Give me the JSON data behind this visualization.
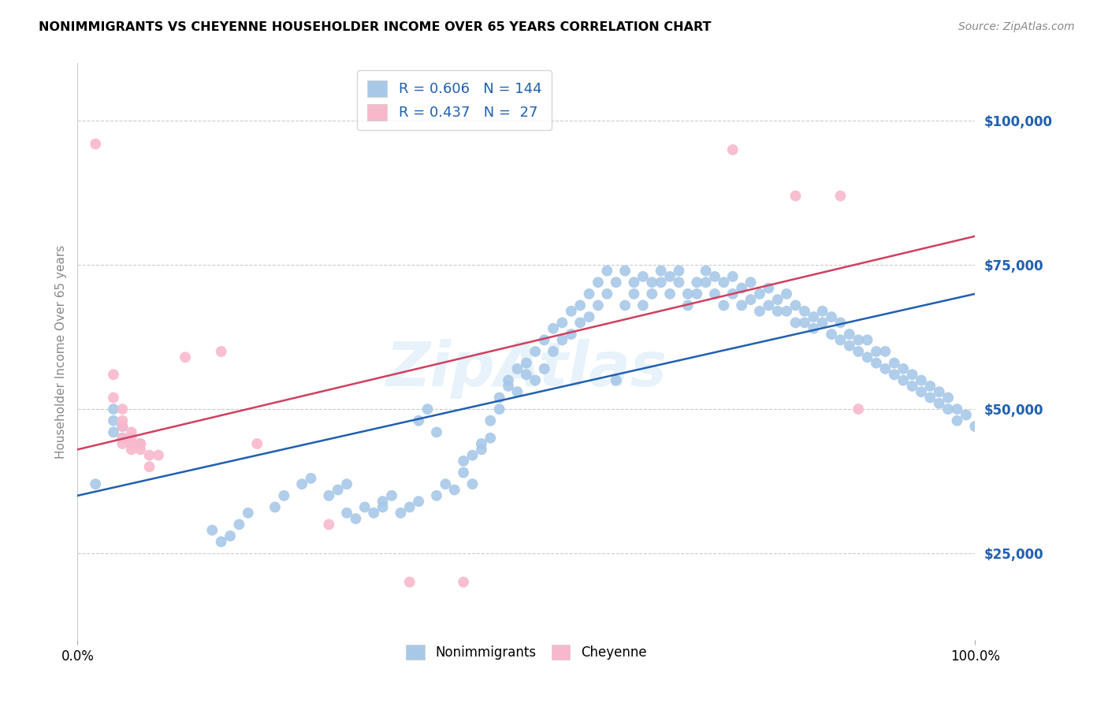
{
  "title": "NONIMMIGRANTS VS CHEYENNE HOUSEHOLDER INCOME OVER 65 YEARS CORRELATION CHART",
  "source": "Source: ZipAtlas.com",
  "ylabel": "Householder Income Over 65 years",
  "xlim": [
    0,
    1.0
  ],
  "ylim": [
    10000,
    110000
  ],
  "xtick_positions": [
    0.0,
    1.0
  ],
  "xtick_labels": [
    "0.0%",
    "100.0%"
  ],
  "ytick_values": [
    25000,
    50000,
    75000,
    100000
  ],
  "ytick_labels": [
    "$25,000",
    "$50,000",
    "$75,000",
    "$100,000"
  ],
  "blue_color": "#a8c8e8",
  "pink_color": "#f8b8cc",
  "blue_line_color": "#2060b0",
  "pink_line_color": "#d04060",
  "watermark": "ZipAtlas",
  "blue_line": {
    "x0": 0.0,
    "y0": 35000,
    "x1": 1.0,
    "y1": 70000
  },
  "pink_line": {
    "x0": 0.0,
    "y0": 43000,
    "x1": 1.0,
    "y1": 80000
  },
  "nonimmigrants": [
    [
      0.02,
      37000
    ],
    [
      0.04,
      50000
    ],
    [
      0.04,
      48000
    ],
    [
      0.04,
      46000
    ],
    [
      0.05,
      47000
    ],
    [
      0.05,
      45000
    ],
    [
      0.15,
      29000
    ],
    [
      0.16,
      27000
    ],
    [
      0.17,
      28000
    ],
    [
      0.18,
      30000
    ],
    [
      0.19,
      32000
    ],
    [
      0.22,
      33000
    ],
    [
      0.23,
      35000
    ],
    [
      0.25,
      37000
    ],
    [
      0.26,
      38000
    ],
    [
      0.28,
      35000
    ],
    [
      0.29,
      36000
    ],
    [
      0.3,
      37000
    ],
    [
      0.3,
      32000
    ],
    [
      0.31,
      31000
    ],
    [
      0.32,
      33000
    ],
    [
      0.33,
      32000
    ],
    [
      0.34,
      34000
    ],
    [
      0.34,
      33000
    ],
    [
      0.35,
      35000
    ],
    [
      0.36,
      32000
    ],
    [
      0.37,
      33000
    ],
    [
      0.38,
      34000
    ],
    [
      0.38,
      48000
    ],
    [
      0.39,
      50000
    ],
    [
      0.4,
      46000
    ],
    [
      0.4,
      35000
    ],
    [
      0.41,
      37000
    ],
    [
      0.42,
      36000
    ],
    [
      0.43,
      39000
    ],
    [
      0.43,
      41000
    ],
    [
      0.44,
      37000
    ],
    [
      0.44,
      42000
    ],
    [
      0.45,
      44000
    ],
    [
      0.45,
      43000
    ],
    [
      0.46,
      45000
    ],
    [
      0.46,
      48000
    ],
    [
      0.47,
      50000
    ],
    [
      0.47,
      52000
    ],
    [
      0.48,
      54000
    ],
    [
      0.48,
      55000
    ],
    [
      0.49,
      53000
    ],
    [
      0.49,
      57000
    ],
    [
      0.5,
      56000
    ],
    [
      0.5,
      58000
    ],
    [
      0.51,
      55000
    ],
    [
      0.51,
      60000
    ],
    [
      0.52,
      57000
    ],
    [
      0.52,
      62000
    ],
    [
      0.53,
      60000
    ],
    [
      0.53,
      64000
    ],
    [
      0.54,
      62000
    ],
    [
      0.54,
      65000
    ],
    [
      0.55,
      63000
    ],
    [
      0.55,
      67000
    ],
    [
      0.56,
      65000
    ],
    [
      0.56,
      68000
    ],
    [
      0.57,
      66000
    ],
    [
      0.57,
      70000
    ],
    [
      0.58,
      68000
    ],
    [
      0.58,
      72000
    ],
    [
      0.59,
      70000
    ],
    [
      0.59,
      74000
    ],
    [
      0.6,
      55000
    ],
    [
      0.6,
      72000
    ],
    [
      0.61,
      68000
    ],
    [
      0.61,
      74000
    ],
    [
      0.62,
      70000
    ],
    [
      0.62,
      72000
    ],
    [
      0.63,
      73000
    ],
    [
      0.63,
      68000
    ],
    [
      0.64,
      72000
    ],
    [
      0.64,
      70000
    ],
    [
      0.65,
      74000
    ],
    [
      0.65,
      72000
    ],
    [
      0.66,
      70000
    ],
    [
      0.66,
      73000
    ],
    [
      0.67,
      72000
    ],
    [
      0.67,
      74000
    ],
    [
      0.68,
      70000
    ],
    [
      0.68,
      68000
    ],
    [
      0.69,
      72000
    ],
    [
      0.69,
      70000
    ],
    [
      0.7,
      74000
    ],
    [
      0.7,
      72000
    ],
    [
      0.71,
      73000
    ],
    [
      0.71,
      70000
    ],
    [
      0.72,
      72000
    ],
    [
      0.72,
      68000
    ],
    [
      0.73,
      70000
    ],
    [
      0.73,
      73000
    ],
    [
      0.74,
      71000
    ],
    [
      0.74,
      68000
    ],
    [
      0.75,
      72000
    ],
    [
      0.75,
      69000
    ],
    [
      0.76,
      70000
    ],
    [
      0.76,
      67000
    ],
    [
      0.77,
      71000
    ],
    [
      0.77,
      68000
    ],
    [
      0.78,
      69000
    ],
    [
      0.78,
      67000
    ],
    [
      0.79,
      70000
    ],
    [
      0.79,
      67000
    ],
    [
      0.8,
      68000
    ],
    [
      0.8,
      65000
    ],
    [
      0.81,
      67000
    ],
    [
      0.81,
      65000
    ],
    [
      0.82,
      66000
    ],
    [
      0.82,
      64000
    ],
    [
      0.83,
      67000
    ],
    [
      0.83,
      65000
    ],
    [
      0.84,
      66000
    ],
    [
      0.84,
      63000
    ],
    [
      0.85,
      65000
    ],
    [
      0.85,
      62000
    ],
    [
      0.86,
      63000
    ],
    [
      0.86,
      61000
    ],
    [
      0.87,
      62000
    ],
    [
      0.87,
      60000
    ],
    [
      0.88,
      62000
    ],
    [
      0.88,
      59000
    ],
    [
      0.89,
      60000
    ],
    [
      0.89,
      58000
    ],
    [
      0.9,
      60000
    ],
    [
      0.9,
      57000
    ],
    [
      0.91,
      58000
    ],
    [
      0.91,
      56000
    ],
    [
      0.92,
      57000
    ],
    [
      0.92,
      55000
    ],
    [
      0.93,
      56000
    ],
    [
      0.93,
      54000
    ],
    [
      0.94,
      55000
    ],
    [
      0.94,
      53000
    ],
    [
      0.95,
      54000
    ],
    [
      0.95,
      52000
    ],
    [
      0.96,
      53000
    ],
    [
      0.96,
      51000
    ],
    [
      0.97,
      52000
    ],
    [
      0.97,
      50000
    ],
    [
      0.98,
      50000
    ],
    [
      0.98,
      48000
    ],
    [
      0.99,
      49000
    ],
    [
      1.0,
      47000
    ]
  ],
  "cheyenne": [
    [
      0.02,
      96000
    ],
    [
      0.04,
      56000
    ],
    [
      0.04,
      52000
    ],
    [
      0.05,
      50000
    ],
    [
      0.05,
      48000
    ],
    [
      0.05,
      47000
    ],
    [
      0.05,
      45000
    ],
    [
      0.05,
      44000
    ],
    [
      0.06,
      46000
    ],
    [
      0.06,
      44000
    ],
    [
      0.06,
      43000
    ],
    [
      0.06,
      45000
    ],
    [
      0.07,
      44000
    ],
    [
      0.07,
      43000
    ],
    [
      0.07,
      44000
    ],
    [
      0.08,
      42000
    ],
    [
      0.08,
      40000
    ],
    [
      0.09,
      42000
    ],
    [
      0.12,
      59000
    ],
    [
      0.16,
      60000
    ],
    [
      0.2,
      44000
    ],
    [
      0.28,
      30000
    ],
    [
      0.37,
      20000
    ],
    [
      0.43,
      20000
    ],
    [
      0.73,
      95000
    ],
    [
      0.8,
      87000
    ],
    [
      0.85,
      87000
    ],
    [
      0.87,
      50000
    ]
  ]
}
